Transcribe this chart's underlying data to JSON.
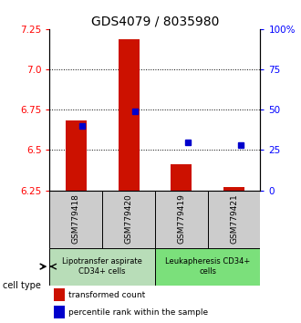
{
  "title": "GDS4079 / 8035980",
  "samples": [
    "GSM779418",
    "GSM779420",
    "GSM779419",
    "GSM779421"
  ],
  "red_values": [
    6.682,
    7.185,
    6.41,
    6.272
  ],
  "blue_pct": [
    40,
    49,
    30,
    28
  ],
  "ylim_left": [
    6.25,
    7.25
  ],
  "ylim_right": [
    0,
    100
  ],
  "yticks_left": [
    6.25,
    6.5,
    6.75,
    7.0,
    7.25
  ],
  "yticks_right": [
    0,
    25,
    50,
    75,
    100
  ],
  "ytick_labels_right": [
    "0",
    "25",
    "50",
    "75",
    "100%"
  ],
  "bar_baseline": 6.25,
  "group1_label": "Lipotransfer aspirate\nCD34+ cells",
  "group2_label": "Leukapheresis CD34+\ncells",
  "group1_indices": [
    0,
    1
  ],
  "group2_indices": [
    2,
    3
  ],
  "group1_color": "#b8ddb8",
  "group2_color": "#7be07b",
  "cell_type_label": "cell type",
  "legend_red": "transformed count",
  "legend_blue": "percentile rank within the sample",
  "bar_color": "#cc1100",
  "dot_color": "#0000cc",
  "grid_dotted_at": [
    6.5,
    6.75,
    7.0
  ],
  "title_fontsize": 10,
  "tick_fontsize": 7.5,
  "sample_fontsize": 6.5,
  "group_fontsize": 6.0,
  "legend_fontsize": 6.5
}
